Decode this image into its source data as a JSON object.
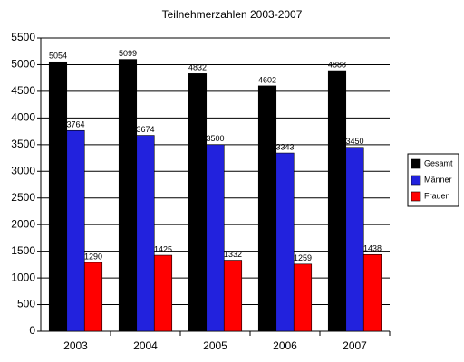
{
  "chart_data": {
    "type": "bar",
    "title": "Teilnehmerzahlen 2003-2007",
    "categories": [
      "2003",
      "2004",
      "2005",
      "2006",
      "2007"
    ],
    "series": [
      {
        "name": "Gesamt",
        "color": "#000000",
        "values": [
          5054,
          5099,
          4832,
          4602,
          4888
        ]
      },
      {
        "name": "Männer",
        "color": "#2222dd",
        "values": [
          3764,
          3674,
          3500,
          3343,
          3450
        ]
      },
      {
        "name": "Frauen",
        "color": "#ff0000",
        "values": [
          1290,
          1425,
          1332,
          1259,
          1438
        ]
      }
    ],
    "ylim": [
      0,
      5500
    ],
    "yticks": [
      0,
      500,
      1000,
      1500,
      2000,
      2500,
      3000,
      3500,
      4000,
      4500,
      5000,
      5500
    ],
    "grid": true,
    "legend": "right"
  }
}
